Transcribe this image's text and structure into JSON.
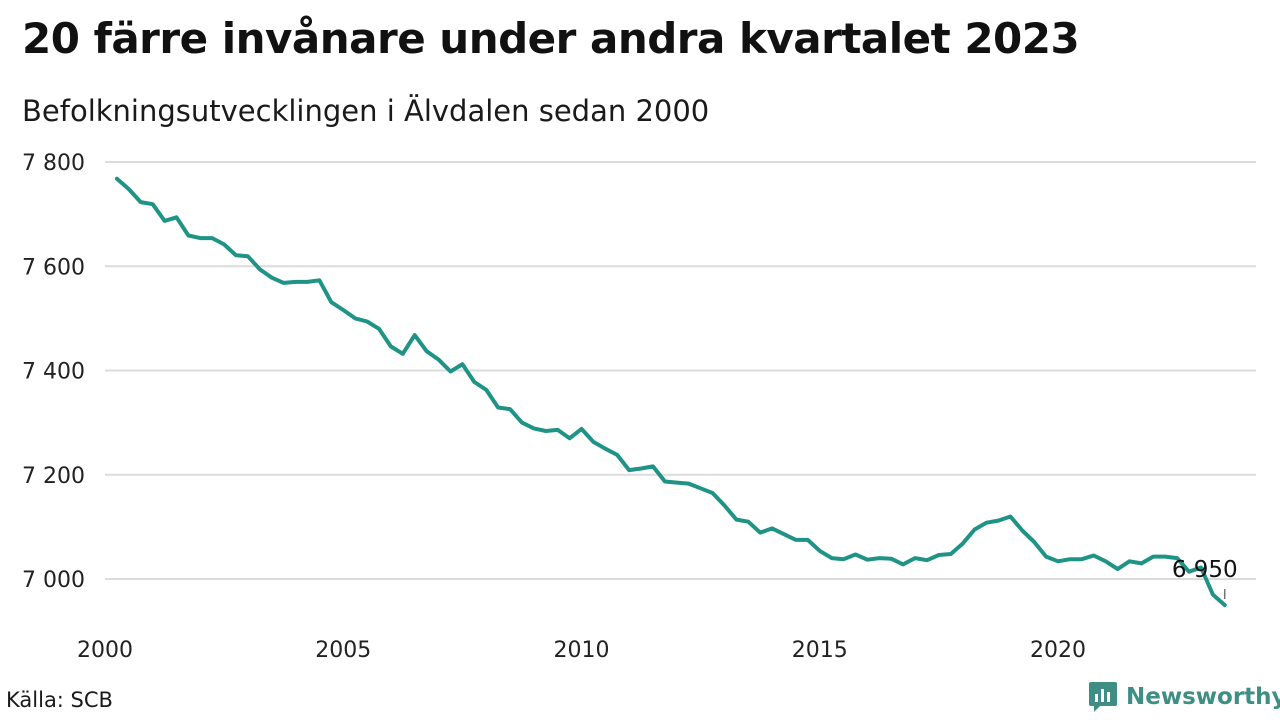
{
  "header": {
    "title": "20 färre invånare under andra kvartalet 2023",
    "subtitle": "Befolkningsutvecklingen i Älvdalen sedan 2000"
  },
  "footer": {
    "source": "Källa: SCB",
    "brand": "Newsworthy",
    "brand_color": "#3e8e83"
  },
  "chart_data": {
    "type": "line",
    "title": "20 färre invånare under andra kvartalet 2023",
    "subtitle": "Befolkningsutvecklingen i Älvdalen sedan 2000",
    "xlabel": "",
    "ylabel": "",
    "xlim": [
      2000,
      2024
    ],
    "ylim": [
      6930,
      7800
    ],
    "x_ticks": [
      2000,
      2005,
      2010,
      2015,
      2020
    ],
    "x_tick_labels": [
      "2000",
      "2005",
      "2010",
      "2015",
      "2020"
    ],
    "y_ticks": [
      7000,
      7200,
      7400,
      7600,
      7800
    ],
    "y_tick_labels": [
      "7 000",
      "7 200",
      "7 400",
      "7 600",
      "7 800"
    ],
    "grid": "horizontal",
    "line_color": "#1f9385",
    "annotation": {
      "x": 2023.5,
      "y": 6950,
      "label": "6 950"
    },
    "series": [
      {
        "x": [
          2000.25,
          2000.5,
          2000.75,
          2001.0,
          2001.25,
          2001.5,
          2001.75,
          2002.0,
          2002.25,
          2002.5,
          2002.75,
          2003.0,
          2003.25,
          2003.5,
          2003.75,
          2004.0,
          2004.25,
          2004.5,
          2004.75,
          2005.0,
          2005.25,
          2005.5,
          2005.75,
          2006.0,
          2006.25,
          2006.5,
          2006.75,
          2007.0,
          2007.25,
          2007.5,
          2007.75,
          2008.0,
          2008.25,
          2008.5,
          2008.75,
          2009.0,
          2009.25,
          2009.5,
          2009.75,
          2010.0,
          2010.25,
          2010.5,
          2010.75,
          2011.0,
          2011.25,
          2011.5,
          2011.75,
          2012.0,
          2012.25,
          2012.5,
          2012.75,
          2013.0,
          2013.25,
          2013.5,
          2013.75,
          2014.0,
          2014.25,
          2014.5,
          2014.75,
          2015.0,
          2015.25,
          2015.5,
          2015.75,
          2016.0,
          2016.25,
          2016.5,
          2016.75,
          2017.0,
          2017.25,
          2017.5,
          2017.75,
          2018.0,
          2018.25,
          2018.5,
          2018.75,
          2019.0,
          2019.25,
          2019.5,
          2019.75,
          2020.0,
          2020.25,
          2020.5,
          2020.75,
          2021.0,
          2021.25,
          2021.5,
          2021.75,
          2022.0,
          2022.25,
          2022.5,
          2022.75,
          2023.0,
          2023.25,
          2023.5
        ],
        "values": [
          7768,
          7748,
          7723,
          7719,
          7687,
          7694,
          7659,
          7654,
          7654,
          7642,
          7621,
          7619,
          7594,
          7578,
          7568,
          7570,
          7570,
          7573,
          7531,
          7516,
          7500,
          7494,
          7480,
          7446,
          7432,
          7468,
          7437,
          7421,
          7398,
          7412,
          7378,
          7363,
          7329,
          7326,
          7300,
          7289,
          7284,
          7286,
          7270,
          7288,
          7263,
          7250,
          7238,
          7209,
          7212,
          7216,
          7187,
          7185,
          7183,
          7174,
          7165,
          7141,
          7114,
          7110,
          7089,
          7097,
          7086,
          7075,
          7075,
          7054,
          7040,
          7038,
          7047,
          7037,
          7040,
          7039,
          7028,
          7040,
          7036,
          7046,
          7048,
          7068,
          7095,
          7108,
          7112,
          7120,
          7093,
          7071,
          7043,
          7034,
          7038,
          7038,
          7045,
          7034,
          7019,
          7034,
          7030,
          7043,
          7043,
          7040,
          7014,
          7022,
          6970,
          6950
        ]
      }
    ]
  }
}
